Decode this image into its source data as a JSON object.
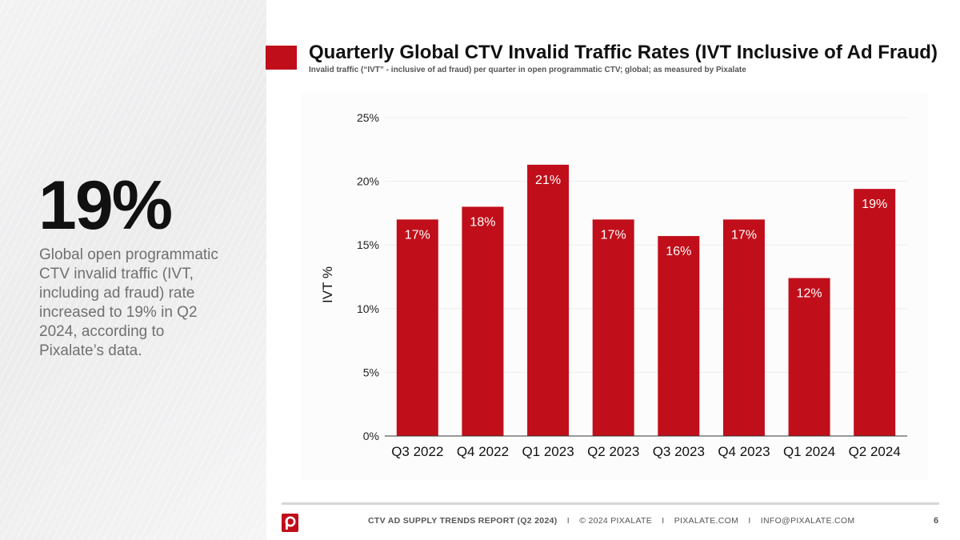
{
  "highlight": {
    "stat": "19%",
    "description": "Global open programmatic CTV invalid traffic (IVT, including ad fraud) rate increased to 19% in Q2 2024, according to Pixalate’s data."
  },
  "chart_data": {
    "type": "bar",
    "title": "Quarterly Global CTV Invalid Traffic Rates (IVT Inclusive of Ad Fraud)",
    "subtitle": "Invalid traffic (“IVT” - inclusive of ad fraud) per quarter in open programmatic CTV; global; as measured by Pixalate",
    "categories": [
      "Q3 2022",
      "Q4 2022",
      "Q1 2023",
      "Q2 2023",
      "Q3 2023",
      "Q4 2023",
      "Q1 2024",
      "Q2 2024"
    ],
    "values": [
      17,
      18,
      21.3,
      17,
      15.7,
      17,
      12.4,
      19.4
    ],
    "data_labels": [
      "17%",
      "18%",
      "21%",
      "17%",
      "16%",
      "17%",
      "12%",
      "19%"
    ],
    "ylabel": "IVT %",
    "xlabel": "",
    "ylim": [
      0,
      25
    ],
    "yticks": [
      0,
      5,
      10,
      15,
      20,
      25
    ],
    "ytick_labels": [
      "0%",
      "5%",
      "10%",
      "15%",
      "20%",
      "25%"
    ],
    "bar_color": "#c00f1a",
    "grid": true,
    "legend": "none"
  },
  "footer": {
    "report": "CTV AD SUPPLY TRENDS REPORT (Q2 2024)",
    "separator": "I",
    "copyright": "© 2024 PIXALATE",
    "website": "PIXALATE.COM",
    "email": "INFO@PIXALATE.COM",
    "page": "6"
  },
  "colors": {
    "accent": "#c00f1a",
    "background": "#ffffff",
    "panel": "#efeff0"
  }
}
